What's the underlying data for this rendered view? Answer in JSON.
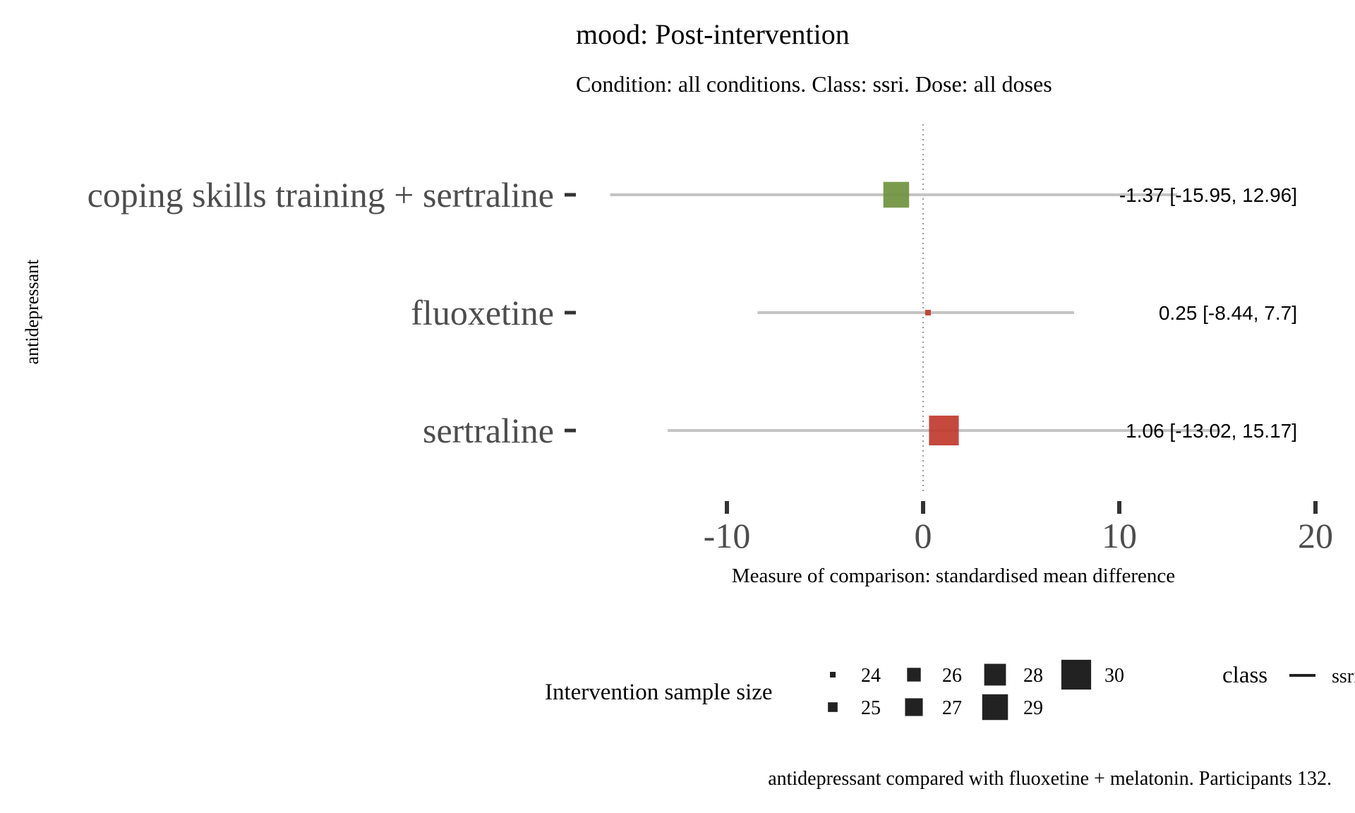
{
  "chart_data": {
    "type": "forest",
    "title": "mood: Post-intervention",
    "subtitle": "Condition: all conditions. Class: ssri. Dose: all doses",
    "ylabel": "antidepressant",
    "xlabel": "Measure of comparison: standardised mean difference",
    "xlim": [
      -18,
      20
    ],
    "xticks": [
      -10,
      0,
      10,
      20
    ],
    "xtick_labels": [
      "-10",
      "0",
      "10",
      "20"
    ],
    "reference_line": 0,
    "grid": false,
    "rows": [
      {
        "label": "coping skills training + sertraline",
        "estimate": -1.37,
        "lower": -15.95,
        "upper": 12.96,
        "sample_size": 29,
        "color": "#6f933f",
        "annotation": "-1.37 [-15.95, 12.96]"
      },
      {
        "label": "fluoxetine",
        "estimate": 0.25,
        "lower": -8.44,
        "upper": 7.7,
        "sample_size": 24,
        "color": "#c0392b",
        "annotation": "0.25 [-8.44, 7.7]"
      },
      {
        "label": "sertraline",
        "estimate": 1.06,
        "lower": -13.02,
        "upper": 15.17,
        "sample_size": 30,
        "color": "#c0392b",
        "annotation": "1.06 [-13.02, 15.17]"
      }
    ],
    "legend_size": {
      "title": "Intervention sample size",
      "entries": [
        {
          "value": 24,
          "label": "24"
        },
        {
          "value": 25,
          "label": "25"
        },
        {
          "value": 26,
          "label": "26"
        },
        {
          "value": 27,
          "label": "27"
        },
        {
          "value": 28,
          "label": "28"
        },
        {
          "value": 29,
          "label": "29"
        },
        {
          "value": 30,
          "label": "30"
        }
      ]
    },
    "legend_class": {
      "title": "class",
      "entries": [
        "ssri"
      ]
    },
    "caption": "antidepressant compared with fluoxetine + melatonin. Participants 132."
  }
}
